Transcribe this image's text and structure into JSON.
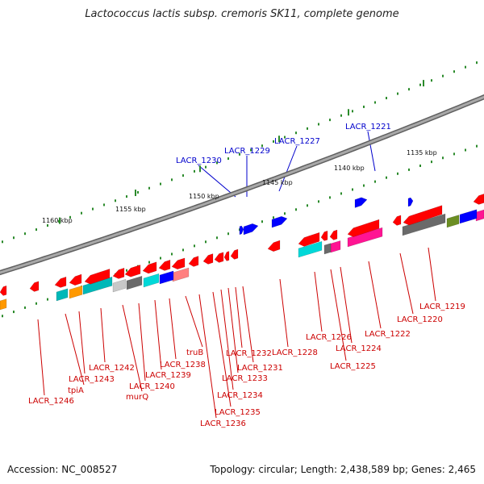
{
  "title": "Lactococcus lactis subsp. cremoris SK11, complete genome",
  "footer": {
    "accession": "Accession: NC_008527",
    "summary": "Topology: circular; Length: 2,438,589 bp; Genes: 2,465"
  },
  "ticks": [
    "1135 kbp",
    "1140 kbp",
    "1145 kbp",
    "1150 kbp",
    "1155 kbp",
    "1160 kbp"
  ],
  "gene_labels": {
    "top": [
      "LACR_1221",
      "LACR_1227",
      "LACR_1229",
      "LACR_1230"
    ],
    "bottom": [
      "LACR_1219",
      "LACR_1220",
      "LACR_1222",
      "LACR_1224",
      "LACR_1225",
      "LACR_1226",
      "LACR_1228",
      "LACR_1231",
      "LACR_1232",
      "LACR_1233",
      "LACR_1234",
      "LACR_1235",
      "LACR_1236",
      "truB",
      "LACR_1238",
      "LACR_1239",
      "LACR_1240",
      "murQ",
      "LACR_1242",
      "LACR_1243",
      "tpiA",
      "LACR_1246"
    ]
  },
  "colors": {
    "backbone": "#8a8a8a",
    "forward_gene": "#ff0000",
    "reverse_gene": "#0000ff",
    "top_label": "#0000cc",
    "bottom_label": "#cc0000",
    "tick_dot": "#2a8a2a",
    "cog_cyan": "#00d8d8",
    "cog_orange": "#ff9900",
    "cog_teal": "#00b8b8",
    "cog_lightgray": "#c8c8c8",
    "cog_darkgray": "#6a6a6a",
    "cog_salmon": "#ff8080",
    "cog_magenta": "#ff1493",
    "cog_olive": "#6b8e23"
  }
}
